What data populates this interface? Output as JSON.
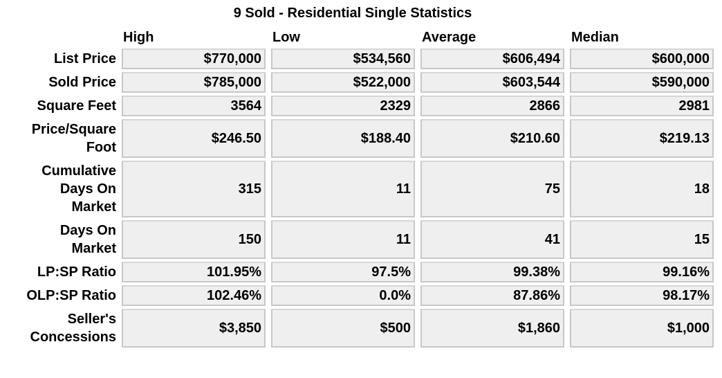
{
  "title": "9 Sold - Residential Single Statistics",
  "columns": [
    "High",
    "Low",
    "Average",
    "Median"
  ],
  "rows": [
    {
      "label": [
        "List Price"
      ],
      "values": [
        "$770,000",
        "$534,560",
        "$606,494",
        "$600,000"
      ]
    },
    {
      "label": [
        "Sold Price"
      ],
      "values": [
        "$785,000",
        "$522,000",
        "$603,544",
        "$590,000"
      ]
    },
    {
      "label": [
        "Square Feet"
      ],
      "values": [
        "3564",
        "2329",
        "2866",
        "2981"
      ]
    },
    {
      "label": [
        "Price/Square",
        "Foot"
      ],
      "values": [
        "$246.50",
        "$188.40",
        "$210.60",
        "$219.13"
      ]
    },
    {
      "label": [
        "Cumulative",
        "Days On",
        "Market"
      ],
      "values": [
        "315",
        "11",
        "75",
        "18"
      ]
    },
    {
      "label": [
        "Days On",
        "Market"
      ],
      "values": [
        "150",
        "11",
        "41",
        "15"
      ]
    },
    {
      "label": [
        "LP:SP Ratio"
      ],
      "values": [
        "101.95%",
        "97.5%",
        "99.38%",
        "99.16%"
      ]
    },
    {
      "label": [
        "OLP:SP Ratio"
      ],
      "values": [
        "102.46%",
        "0.0%",
        "87.86%",
        "98.17%"
      ]
    },
    {
      "label": [
        "Seller's",
        "Concessions"
      ],
      "values": [
        "$3,850",
        "$500",
        "$1,860",
        "$1,000"
      ]
    }
  ]
}
